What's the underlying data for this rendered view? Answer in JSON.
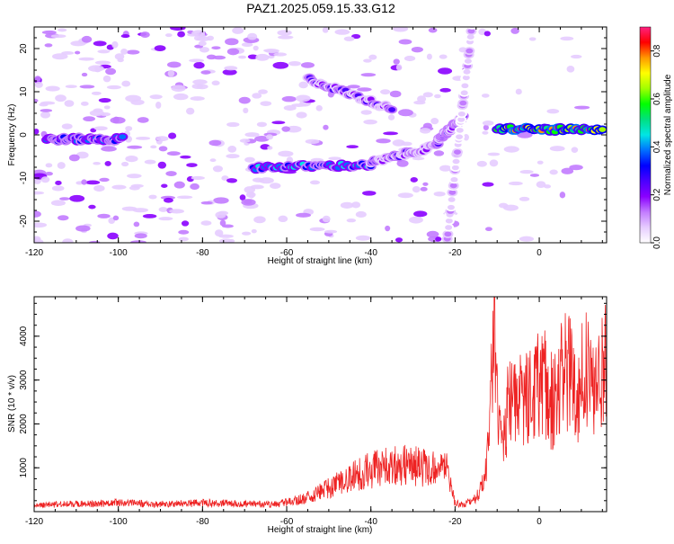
{
  "title": "PAZ1.2025.059.15.33.G12",
  "chart_data": [
    {
      "type": "heatmap",
      "xlabel": "Height of straight line (km)",
      "ylabel": "Frequency (Hz)",
      "xlim": [
        -120,
        16
      ],
      "ylim": [
        -25,
        25
      ],
      "xticks": [
        "-120",
        "-100",
        "-80",
        "-60",
        "-40",
        "-20",
        "0"
      ],
      "xtick_values": [
        -120,
        -100,
        -80,
        -60,
        -40,
        -20,
        0
      ],
      "yticks": [
        "-20",
        "-10",
        "0",
        "10",
        "20"
      ],
      "ytick_values": [
        -20,
        -10,
        0,
        10,
        20
      ],
      "colorbar": {
        "label": "Normalized spectral amplitude",
        "range": [
          0,
          0.9
        ],
        "ticks": [
          "0.0",
          "0.2",
          "0.4",
          "0.6",
          "0.8"
        ],
        "tick_values": [
          0,
          0.2,
          0.4,
          0.6,
          0.8
        ],
        "colors": [
          "#ffffff",
          "#e6ccff",
          "#c27bff",
          "#8a00ff",
          "#4b00ff",
          "#0000ff",
          "#0070ff",
          "#00e5e5",
          "#00e080",
          "#00ff00",
          "#a0ff00",
          "#ffff00",
          "#ff9900",
          "#ff0000",
          "#ff2080"
        ]
      },
      "features": [
        {
          "x0": -117,
          "y0": -1,
          "x1": -99,
          "y1": -1,
          "amp": 0.45
        },
        {
          "x0": -68,
          "y0": -7.5,
          "x1": -40,
          "y1": -7,
          "amp": 0.5
        },
        {
          "x0": -40,
          "y0": -6.5,
          "x1": -24,
          "y1": -2.5,
          "amp": 0.3
        },
        {
          "x0": -24,
          "y0": -1,
          "x1": -18,
          "y1": 4,
          "amp": 0.35
        },
        {
          "x0": -10,
          "y0": 1.5,
          "x1": 15,
          "y1": 1,
          "amp": 0.85
        },
        {
          "x0": -55,
          "y0": 13,
          "x1": -35,
          "y1": 6,
          "amp": 0.3
        },
        {
          "x0": -22,
          "y0": -25,
          "x1": -16,
          "y1": 25,
          "amp": 0.15
        }
      ]
    },
    {
      "type": "line",
      "xlabel": "Height of straight line (km)",
      "ylabel": "SNR (10 * v/v)",
      "xlim": [
        -120,
        16
      ],
      "ylim": [
        0,
        4900
      ],
      "xticks": [
        "-120",
        "-100",
        "-80",
        "-60",
        "-40",
        "-20",
        "0"
      ],
      "xtick_values": [
        -120,
        -100,
        -80,
        -60,
        -40,
        -20,
        0
      ],
      "yticks": [
        "1000",
        "2000",
        "3000",
        "4000"
      ],
      "ytick_values": [
        1000,
        2000,
        3000,
        4000
      ],
      "color": "#ee2222",
      "x": [
        -120,
        -110,
        -100,
        -90,
        -80,
        -70,
        -63,
        -58,
        -54,
        -50,
        -46,
        -42,
        -38,
        -34,
        -30,
        -28,
        -26,
        -22,
        -20,
        -18,
        -15,
        -13,
        -12,
        -11,
        -10.5,
        -10,
        -9,
        -7,
        -5,
        -3,
        -1,
        1,
        3,
        5,
        7,
        9,
        11,
        13,
        15,
        16
      ],
      "y": [
        150,
        180,
        200,
        170,
        200,
        180,
        160,
        250,
        350,
        550,
        700,
        900,
        1000,
        1050,
        1050,
        1050,
        950,
        950,
        200,
        150,
        300,
        700,
        1700,
        3500,
        4200,
        2600,
        1700,
        2500,
        2700,
        2500,
        2700,
        3000,
        2500,
        3000,
        3300,
        2700,
        3200,
        2600,
        3200,
        3300
      ]
    }
  ]
}
